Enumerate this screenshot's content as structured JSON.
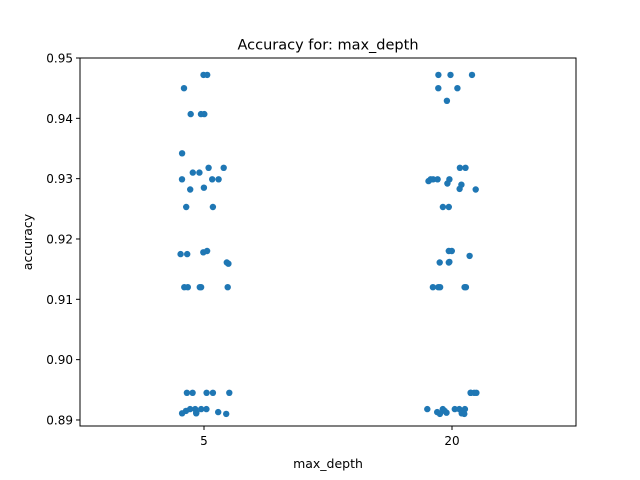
{
  "chart_data": {
    "type": "scatter",
    "title": "Accuracy for: max_depth",
    "xlabel": "max_depth",
    "ylabel": "accuracy",
    "categories": [
      "5",
      "20"
    ],
    "ylim": [
      0.889,
      0.95
    ],
    "yticks": [
      "0.89",
      "0.90",
      "0.91",
      "0.92",
      "0.93",
      "0.94",
      "0.95"
    ],
    "ytick_values": [
      0.89,
      0.9,
      0.91,
      0.92,
      0.93,
      0.94,
      0.95
    ],
    "grid": false,
    "point_color": "#1f77b4",
    "series": [
      {
        "category": "5",
        "values": [
          0.9472,
          0.9472,
          0.945,
          0.9407,
          0.9407,
          0.9407,
          0.9342,
          0.9318,
          0.9318,
          0.931,
          0.931,
          0.9299,
          0.9299,
          0.9299,
          0.9285,
          0.9282,
          0.9253,
          0.9253,
          0.918,
          0.9178,
          0.9175,
          0.9175,
          0.9161,
          0.9159,
          0.912,
          0.912,
          0.912,
          0.912,
          0.912,
          0.8945,
          0.8945,
          0.8945,
          0.8945,
          0.8945,
          0.8918,
          0.8918,
          0.8918,
          0.8918,
          0.8915,
          0.8913,
          0.8912,
          0.8911,
          0.8911,
          0.891
        ]
      },
      {
        "category": "20",
        "values": [
          0.9472,
          0.9472,
          0.9472,
          0.945,
          0.945,
          0.9429,
          0.9318,
          0.9318,
          0.9299,
          0.9299,
          0.9299,
          0.9299,
          0.9296,
          0.9292,
          0.929,
          0.9283,
          0.9282,
          0.9253,
          0.9253,
          0.918,
          0.918,
          0.9172,
          0.9162,
          0.9161,
          0.9161,
          0.912,
          0.912,
          0.912,
          0.912,
          0.912,
          0.8945,
          0.8945,
          0.8945,
          0.8945,
          0.8918,
          0.8918,
          0.8918,
          0.8918,
          0.8918,
          0.8915,
          0.8913,
          0.8912,
          0.8911,
          0.891,
          0.891
        ]
      }
    ]
  }
}
